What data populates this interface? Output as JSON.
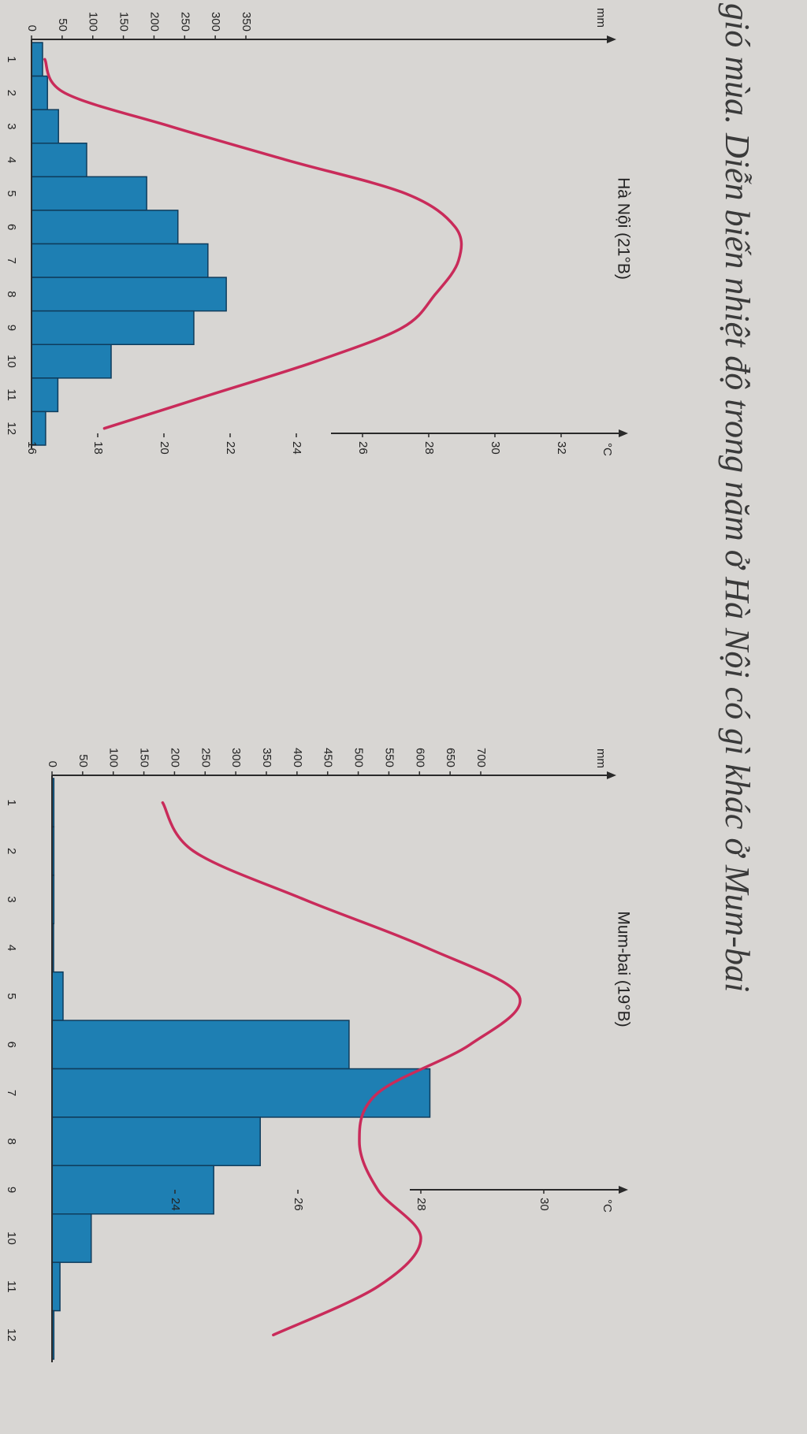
{
  "heading": "gió mùa. Diễn biến nhiệt độ trong năm ở Hà Nội có gì khác ở Mum-bai",
  "chart_data": [
    {
      "type": "bar",
      "title": "Hà Nội (21°B)",
      "categories": [
        "1",
        "2",
        "3",
        "4",
        "5",
        "6",
        "7",
        "8",
        "9",
        "10",
        "11",
        "12"
      ],
      "series": [
        {
          "values": [
            18,
            26,
            44,
            90,
            188,
            239,
            288,
            318,
            265,
            130,
            43,
            23
          ]
        },
        {
          "values": [
            16.4,
            17.0,
            20.2,
            23.7,
            27.3,
            28.8,
            28.9,
            28.2,
            27.2,
            24.6,
            21.4,
            18.2
          ]
        }
      ],
      "y_left_label": "mm",
      "y_left_ticks": [
        "0",
        "50",
        "100",
        "150",
        "200",
        "250",
        "300",
        "350"
      ],
      "y_right_label": "°C",
      "y_right_ticks": [
        "16",
        "18",
        "20",
        "22",
        "24",
        "26",
        "28",
        "30",
        "32"
      ],
      "ylim_left": [
        0,
        350
      ],
      "ylim_right": [
        16,
        32
      ]
    },
    {
      "type": "bar",
      "title": "Mum-bai (19°B)",
      "categories": [
        "1",
        "2",
        "3",
        "4",
        "5",
        "6",
        "7",
        "8",
        "9",
        "10",
        "11",
        "12"
      ],
      "series": [
        {
          "values": [
            3,
            3,
            3,
            2,
            18,
            485,
            617,
            340,
            264,
            64,
            13,
            3
          ]
        },
        {
          "values": [
            23.8,
            24.3,
            26.1,
            28.1,
            29.6,
            28.8,
            27.3,
            27.0,
            27.3,
            28.0,
            27.3,
            25.6
          ]
        }
      ],
      "y_left_label": "mm",
      "y_left_ticks": [
        "0",
        "50",
        "100",
        "150",
        "200",
        "250",
        "300",
        "350",
        "400",
        "450",
        "500",
        "550",
        "600",
        "650",
        "700"
      ],
      "y_right_label": "°C",
      "y_right_ticks": [
        "24",
        "26",
        "28",
        "30"
      ],
      "ylim_left": [
        0,
        700
      ],
      "ylim_right": [
        22,
        30
      ]
    }
  ],
  "colors": {
    "bar": "#1e7fb3",
    "temperature": "#c92b5a"
  }
}
